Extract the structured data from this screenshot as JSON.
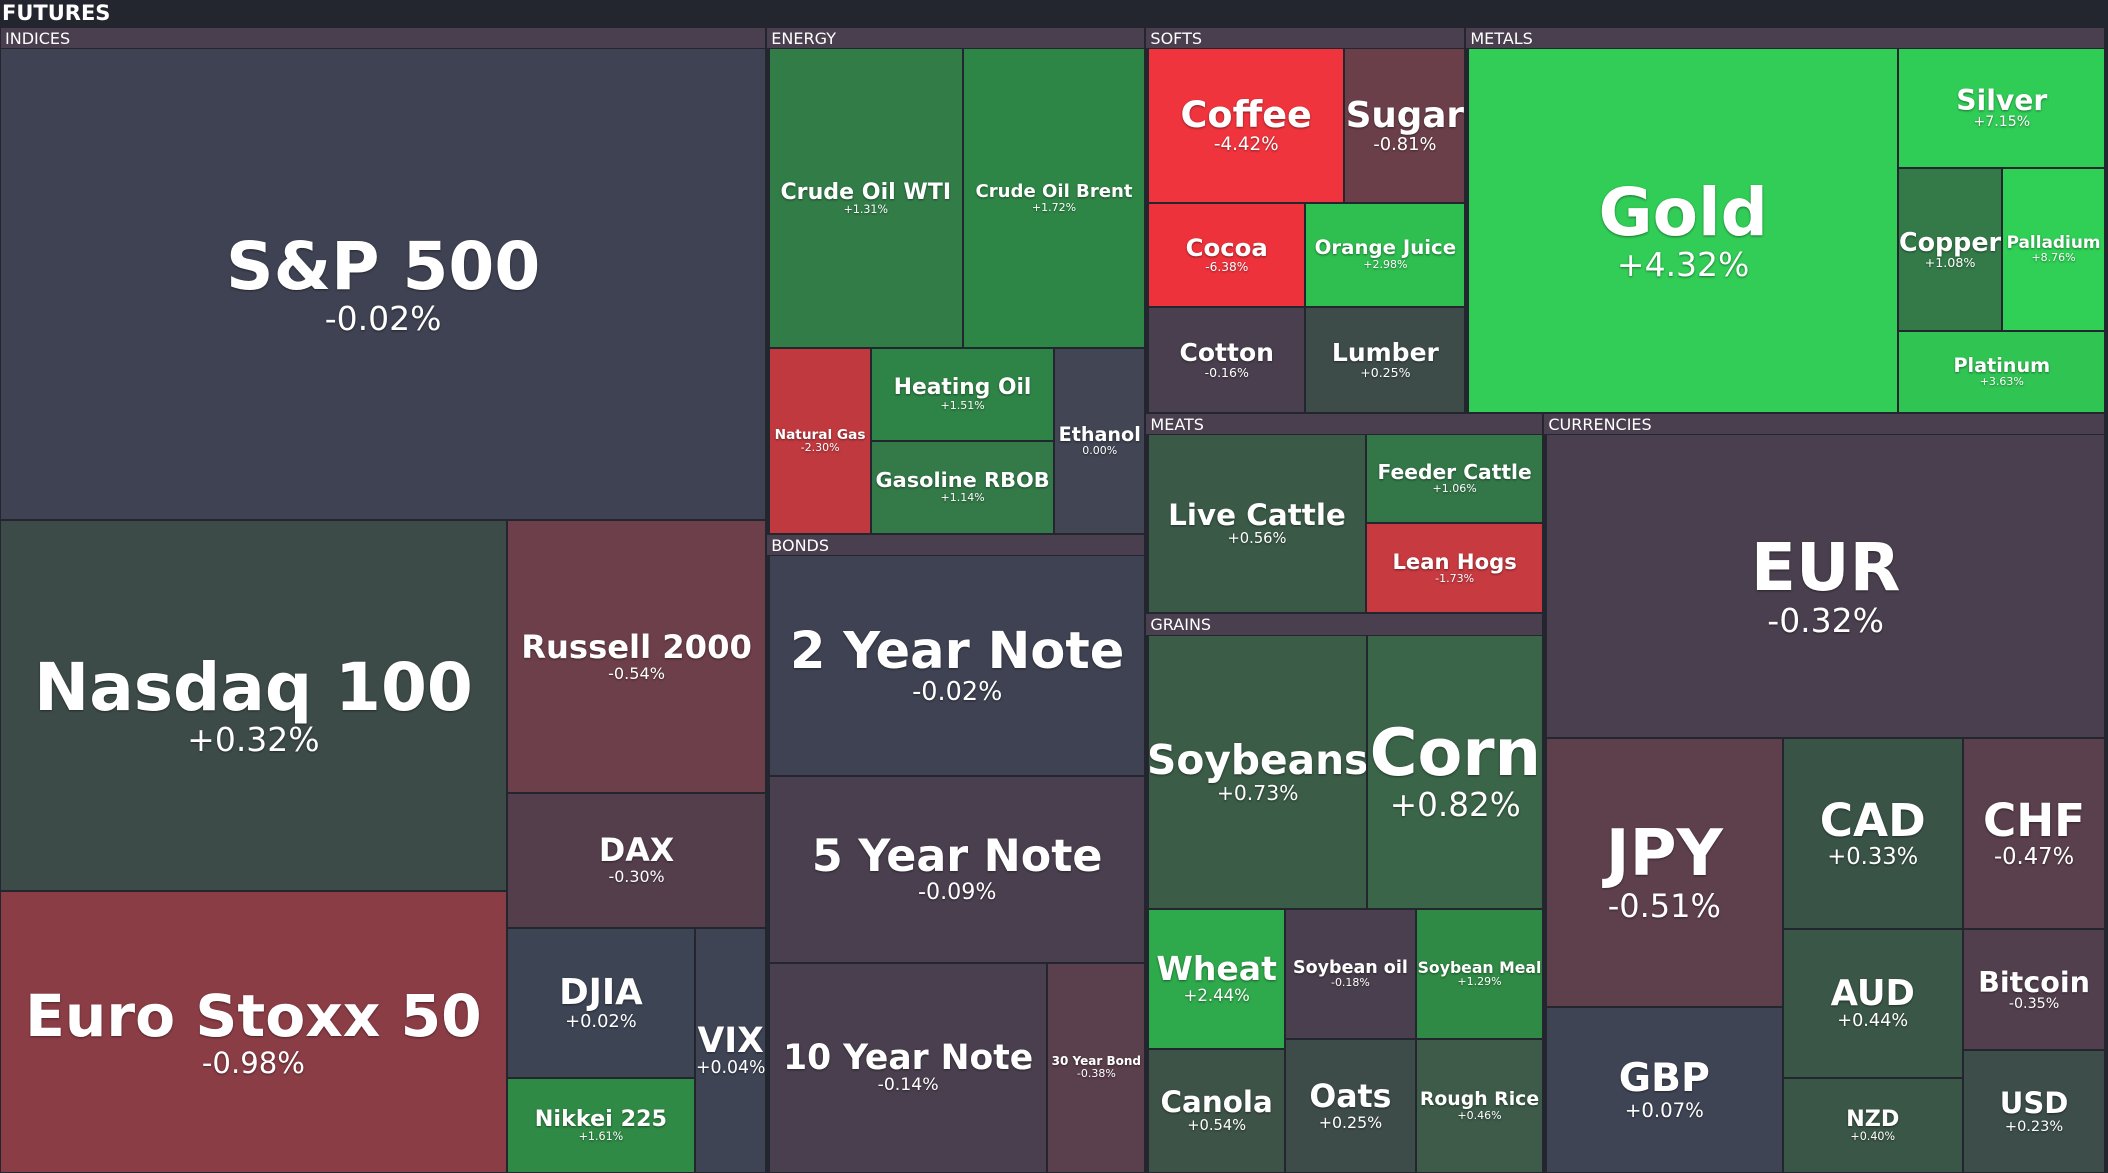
{
  "header": {
    "title": "FUTURES"
  },
  "groups": [
    {
      "label": "INDICES",
      "tiles": [
        {
          "name": "S&P 500",
          "change": "-0.02%"
        },
        {
          "name": "Nasdaq 100",
          "change": "+0.32%"
        },
        {
          "name": "Euro Stoxx 50",
          "change": "-0.98%"
        },
        {
          "name": "Russell 2000",
          "change": "-0.54%"
        },
        {
          "name": "DAX",
          "change": "-0.30%"
        },
        {
          "name": "DJIA",
          "change": "+0.02%"
        },
        {
          "name": "Nikkei 225",
          "change": "+1.61%"
        },
        {
          "name": "VIX",
          "change": "+0.04%"
        }
      ]
    },
    {
      "label": "ENERGY",
      "tiles": [
        {
          "name": "Crude Oil WTI",
          "change": "+1.31%"
        },
        {
          "name": "Crude Oil Brent",
          "change": "+1.72%"
        },
        {
          "name": "Natural Gas",
          "change": "-2.30%"
        },
        {
          "name": "Heating Oil",
          "change": "+1.51%"
        },
        {
          "name": "Gasoline RBOB",
          "change": "+1.14%"
        },
        {
          "name": "Ethanol",
          "change": "0.00%"
        }
      ]
    },
    {
      "label": "BONDS",
      "tiles": [
        {
          "name": "2 Year Note",
          "change": "-0.02%"
        },
        {
          "name": "5 Year Note",
          "change": "-0.09%"
        },
        {
          "name": "10 Year Note",
          "change": "-0.14%"
        },
        {
          "name": "30 Year Bond",
          "change": "-0.38%"
        }
      ]
    },
    {
      "label": "SOFTS",
      "tiles": [
        {
          "name": "Coffee",
          "change": "-4.42%"
        },
        {
          "name": "Sugar",
          "change": "-0.81%"
        },
        {
          "name": "Cocoa",
          "change": "-6.38%"
        },
        {
          "name": "Orange Juice",
          "change": "+2.98%"
        },
        {
          "name": "Cotton",
          "change": "-0.16%"
        },
        {
          "name": "Lumber",
          "change": "+0.25%"
        }
      ]
    },
    {
      "label": "METALS",
      "tiles": [
        {
          "name": "Gold",
          "change": "+4.32%"
        },
        {
          "name": "Silver",
          "change": "+7.15%"
        },
        {
          "name": "Copper",
          "change": "+1.08%"
        },
        {
          "name": "Palladium",
          "change": "+8.76%"
        },
        {
          "name": "Platinum",
          "change": "+3.63%"
        }
      ]
    },
    {
      "label": "MEATS",
      "tiles": [
        {
          "name": "Live Cattle",
          "change": "+0.56%"
        },
        {
          "name": "Feeder Cattle",
          "change": "+1.06%"
        },
        {
          "name": "Lean Hogs",
          "change": "-1.73%"
        }
      ]
    },
    {
      "label": "GRAINS",
      "tiles": [
        {
          "name": "Soybeans",
          "change": "+0.73%"
        },
        {
          "name": "Corn",
          "change": "+0.82%"
        },
        {
          "name": "Wheat",
          "change": "+2.44%"
        },
        {
          "name": "Soybean oil",
          "change": "-0.18%"
        },
        {
          "name": "Soybean Meal",
          "change": "+1.29%"
        },
        {
          "name": "Canola",
          "change": "+0.54%"
        },
        {
          "name": "Oats",
          "change": "+0.25%"
        },
        {
          "name": "Rough Rice",
          "change": "+0.46%"
        }
      ]
    },
    {
      "label": "CURRENCIES",
      "tiles": [
        {
          "name": "EUR",
          "change": "-0.32%"
        },
        {
          "name": "JPY",
          "change": "-0.51%"
        },
        {
          "name": "GBP",
          "change": "+0.07%"
        },
        {
          "name": "CAD",
          "change": "+0.33%"
        },
        {
          "name": "CHF",
          "change": "-0.47%"
        },
        {
          "name": "AUD",
          "change": "+0.44%"
        },
        {
          "name": "Bitcoin",
          "change": "-0.35%"
        },
        {
          "name": "NZD",
          "change": "+0.40%"
        },
        {
          "name": "USD",
          "change": "+0.23%"
        }
      ]
    }
  ]
}
